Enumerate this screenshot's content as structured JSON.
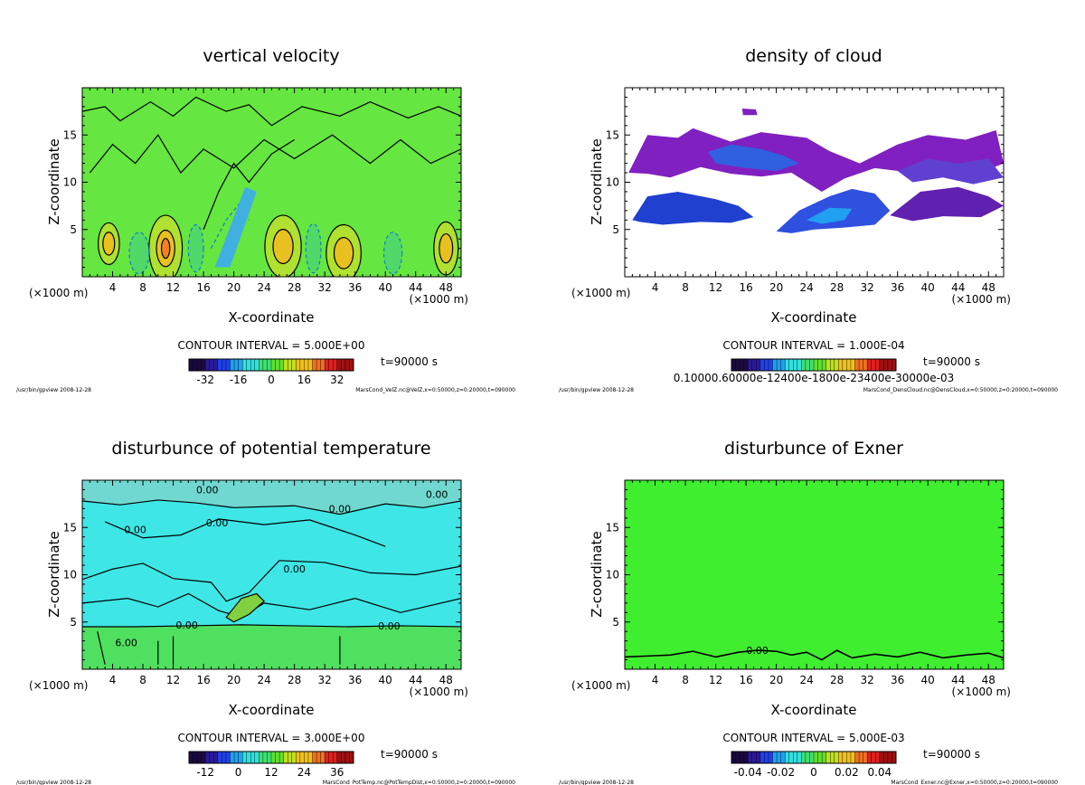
{
  "chart_data": [
    {
      "type": "heatmap",
      "title": "vertical velocity",
      "xlabel": "X-coordinate",
      "ylabel": "Z-coordinate",
      "x_unit": "(×1000 m)",
      "y_unit": "(×1000 m)",
      "xlim": [
        0,
        50
      ],
      "ylim": [
        0,
        20
      ],
      "xticks": [
        4,
        8,
        12,
        16,
        20,
        24,
        28,
        32,
        36,
        40,
        44,
        48
      ],
      "yticks": [
        5,
        10,
        15
      ],
      "contour_interval": "CONTOUR INTERVAL = 5.000E+00",
      "time": "t=90000 s",
      "colorbar_ticks": [
        "-32",
        "-16",
        "0",
        "16",
        "32"
      ],
      "colorbar_range": [
        -40,
        40
      ],
      "background": "#66e640",
      "contour_labels": [],
      "footer_left": "/usr/bin/gpview  2008-12-28",
      "footer_right": "MarsCond_VelZ.nc@VelZ,x=0:50000,z=0:20000,t=090000"
    },
    {
      "type": "heatmap",
      "title": "density of cloud",
      "xlabel": "X-coordinate",
      "ylabel": "Z-coordinate",
      "x_unit": "(×1000 m)",
      "y_unit": "(×1000 m)",
      "xlim": [
        0,
        50
      ],
      "ylim": [
        0,
        20
      ],
      "xticks": [
        4,
        8,
        12,
        16,
        20,
        24,
        28,
        32,
        36,
        40,
        44,
        48
      ],
      "yticks": [
        5,
        10,
        15
      ],
      "contour_interval": "CONTOUR INTERVAL = 1.000E-04",
      "time": "t=90000 s",
      "colorbar_ticks": [
        "0.10000.60000e-12400e-1800e-23400e-30000e-03"
      ],
      "colorbar_range": [
        0,
        1
      ],
      "background": "#ffffff",
      "contour_labels": [],
      "footer_left": "/usr/bin/gpview  2008-12-28",
      "footer_right": "MarsCond_DensCloud.nc@DensCloud,x=0:50000,z=0:20000,t=090000"
    },
    {
      "type": "heatmap",
      "title": "disturbunce of potential temperature",
      "xlabel": "X-coordinate",
      "ylabel": "Z-coordinate",
      "x_unit": "(×1000 m)",
      "y_unit": "(×1000 m)",
      "xlim": [
        0,
        50
      ],
      "ylim": [
        0,
        20
      ],
      "xticks": [
        4,
        8,
        12,
        16,
        20,
        24,
        28,
        32,
        36,
        40,
        44,
        48
      ],
      "yticks": [
        5,
        10,
        15
      ],
      "contour_interval": "CONTOUR INTERVAL = 3.000E+00",
      "time": "t=90000 s",
      "colorbar_ticks": [
        "-12",
        "0",
        "12",
        "24",
        "36"
      ],
      "colorbar_range": [
        -18,
        42
      ],
      "background": "#3ee6e6",
      "contour_labels": [
        {
          "text": "0.00",
          "x": 16.5,
          "z": 19.0
        },
        {
          "text": "0.00",
          "x": 46.8,
          "z": 18.5
        },
        {
          "text": "0.00",
          "x": 34.0,
          "z": 17.0
        },
        {
          "text": "0.00",
          "x": 17.8,
          "z": 15.5
        },
        {
          "text": "0.00",
          "x": 7.0,
          "z": 14.8
        },
        {
          "text": "0.00",
          "x": 28.0,
          "z": 10.6
        },
        {
          "text": "0.00",
          "x": 13.8,
          "z": 4.7
        },
        {
          "text": "0.00",
          "x": 40.5,
          "z": 4.6
        },
        {
          "text": "6.00",
          "x": 5.8,
          "z": 2.8
        }
      ],
      "footer_left": "/usr/bin/gpview  2008-12-28",
      "footer_right": "MarsCond_PotTemp.nc@PotTempDist,x=0:50000,z=0:20000,t=090000"
    },
    {
      "type": "heatmap",
      "title": "disturbunce of Exner",
      "xlabel": "X-coordinate",
      "ylabel": "Z-coordinate",
      "x_unit": "(×1000 m)",
      "y_unit": "(×1000 m)",
      "xlim": [
        0,
        50
      ],
      "ylim": [
        0,
        20
      ],
      "xticks": [
        4,
        8,
        12,
        16,
        20,
        24,
        28,
        32,
        36,
        40,
        44,
        48
      ],
      "yticks": [
        5,
        10,
        15
      ],
      "contour_interval": "CONTOUR INTERVAL = 5.000E-03",
      "time": "t=90000 s",
      "colorbar_ticks": [
        "-0.04",
        "-0.02",
        "0",
        "0.02",
        "0.04"
      ],
      "colorbar_range": [
        -0.05,
        0.05
      ],
      "background": "#40ee30",
      "contour_labels": [
        {
          "text": "0.00",
          "x": 17.5,
          "z": 2.0
        }
      ],
      "footer_left": "/usr/bin/gpview  2008-12-28",
      "footer_right": "MarsCond_Exner.nc@Exner,x=0:50000,z=0:20000,t=090000"
    }
  ]
}
